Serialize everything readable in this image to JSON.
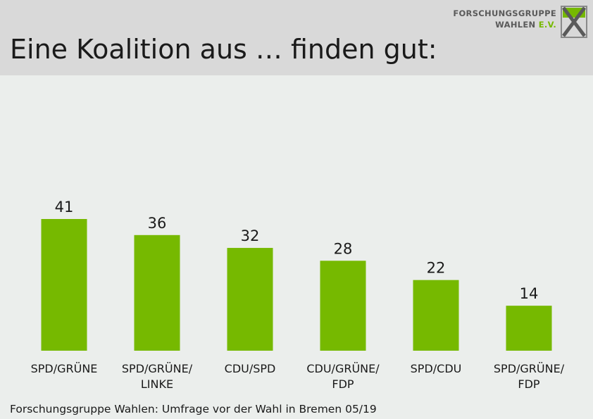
{
  "header": {
    "title": "Eine Koalition aus … finden gut:",
    "logo": {
      "line1": "FORSCHUNGSGRUPPE",
      "line2": "WAHLEN",
      "line2_suffix": "E.V."
    }
  },
  "footer": {
    "source": "Forschungsgruppe Wahlen: Umfrage vor der Wahl in Bremen 05/19"
  },
  "colors": {
    "bar": "#76b900",
    "header_bg": "#d9d9d9",
    "page_bg": "#ebeeec"
  },
  "chart_data": {
    "type": "bar",
    "title": "Eine Koalition aus … finden gut:",
    "categories": [
      [
        "SPD/GRÜNE"
      ],
      [
        "SPD/GRÜNE/",
        "LINKE"
      ],
      [
        "CDU/SPD"
      ],
      [
        "CDU/GRÜNE/",
        "FDP"
      ],
      [
        "SPD/CDU"
      ],
      [
        "SPD/GRÜNE/",
        "FDP"
      ]
    ],
    "values": [
      41,
      36,
      32,
      28,
      22,
      14
    ],
    "xlabel": "",
    "ylabel": "",
    "ylim": [
      0,
      41
    ],
    "grid": false,
    "legend": "none"
  }
}
